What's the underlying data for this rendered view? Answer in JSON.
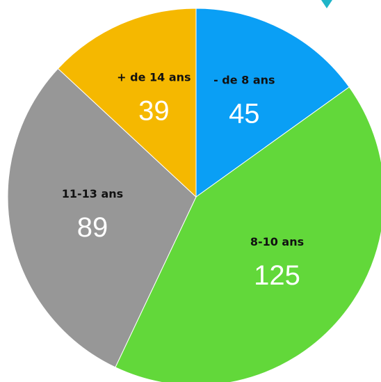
{
  "chart_data": {
    "type": "pie",
    "categories": [
      "- de 8 ans",
      "8-10 ans",
      "11-13 ans",
      "+ de 14 ans"
    ],
    "values": [
      45,
      125,
      89,
      39
    ],
    "colors": [
      "#0a9ff5",
      "#62d83a",
      "#979797",
      "#f5b800"
    ]
  }
}
